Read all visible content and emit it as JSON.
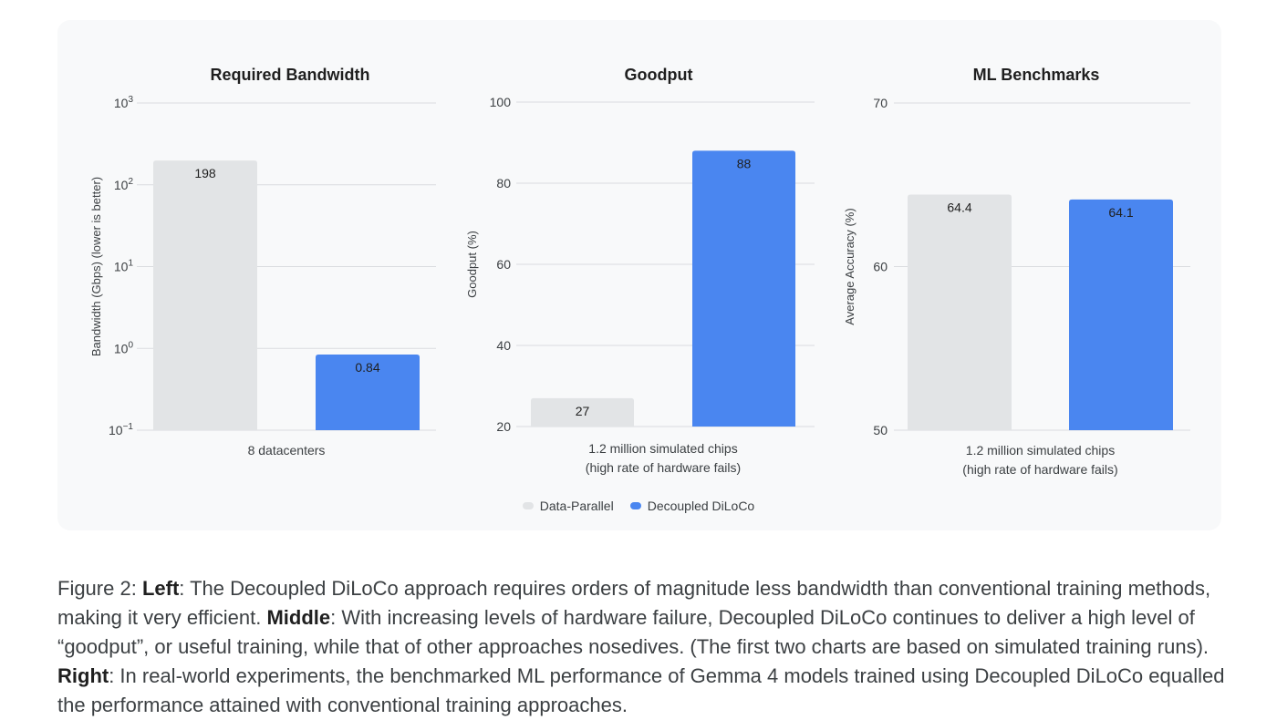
{
  "chart_data": [
    {
      "type": "bar",
      "title": "Required Bandwidth",
      "ylabel": "Bandwidth (Gbps) (lower is better)",
      "yscale": "log",
      "ylim": [
        0.1,
        1000
      ],
      "yticks": [
        {
          "value": 1000,
          "base": "10",
          "exp": "3"
        },
        {
          "value": 100,
          "base": "10",
          "exp": "2"
        },
        {
          "value": 10,
          "base": "10",
          "exp": "1"
        },
        {
          "value": 1,
          "base": "10",
          "exp": "0"
        },
        {
          "value": 0.1,
          "base": "10",
          "exp": "−1"
        }
      ],
      "category_lines": [
        "8 datacenters"
      ],
      "series": [
        {
          "name": "Data-Parallel",
          "value": 198,
          "label": "198"
        },
        {
          "name": "Decoupled DiLoCo",
          "value": 0.84,
          "label": "0.84"
        }
      ],
      "grid": true
    },
    {
      "type": "bar",
      "title": "Goodput",
      "ylabel": "Goodput (%)",
      "yscale": "linear",
      "ylim": [
        20,
        100
      ],
      "yticks": [
        {
          "value": 100,
          "base": "100"
        },
        {
          "value": 80,
          "base": "80"
        },
        {
          "value": 60,
          "base": "60"
        },
        {
          "value": 40,
          "base": "40"
        },
        {
          "value": 20,
          "base": "20"
        }
      ],
      "category_lines": [
        "1.2 million simulated chips",
        "(high rate of hardware fails)"
      ],
      "series": [
        {
          "name": "Data-Parallel",
          "value": 27,
          "label": "27"
        },
        {
          "name": "Decoupled DiLoCo",
          "value": 88,
          "label": "88"
        }
      ],
      "grid": true
    },
    {
      "type": "bar",
      "title": "ML Benchmarks",
      "ylabel": "Average Accuracy (%)",
      "yscale": "linear",
      "ylim": [
        50,
        70
      ],
      "yticks": [
        {
          "value": 70,
          "base": "70"
        },
        {
          "value": 60,
          "base": "60"
        },
        {
          "value": 50,
          "base": "50"
        }
      ],
      "category_lines": [
        "1.2 million simulated chips",
        "(high rate of hardware fails)"
      ],
      "series": [
        {
          "name": "Data-Parallel",
          "value": 64.4,
          "label": "64.4"
        },
        {
          "name": "Decoupled DiLoCo",
          "value": 64.1,
          "label": "64.1"
        }
      ],
      "grid": true
    }
  ],
  "legend": {
    "placement": "bottom-center",
    "items": [
      {
        "label": "Data-Parallel",
        "color": "#e2e4e6"
      },
      {
        "label": "Decoupled DiLoCo",
        "color": "#4a86f0"
      }
    ]
  },
  "colors": {
    "data_parallel": "#e2e4e6",
    "decoupled_diloco": "#4a86f0",
    "gridline": "#dadce0"
  },
  "caption": {
    "prefix": "Figure 2: ",
    "left_label": "Left",
    "left_text": ": The Decoupled DiLoCo approach requires orders of magnitude less bandwidth than conventional training methods, making it very efficient. ",
    "middle_label": "Middle",
    "middle_text": ": With increasing levels of hardware failure, Decoupled DiLoCo continues to deliver a high level of “goodput”, or useful training, while that of other approaches nosedives. (The first two charts are based on simulated training runs). ",
    "right_label": "Right",
    "right_text": ": In real-world experiments, the benchmarked ML performance of Gemma 4 models trained using Decoupled DiLoCo equalled the performance attained with conventional training approaches."
  }
}
